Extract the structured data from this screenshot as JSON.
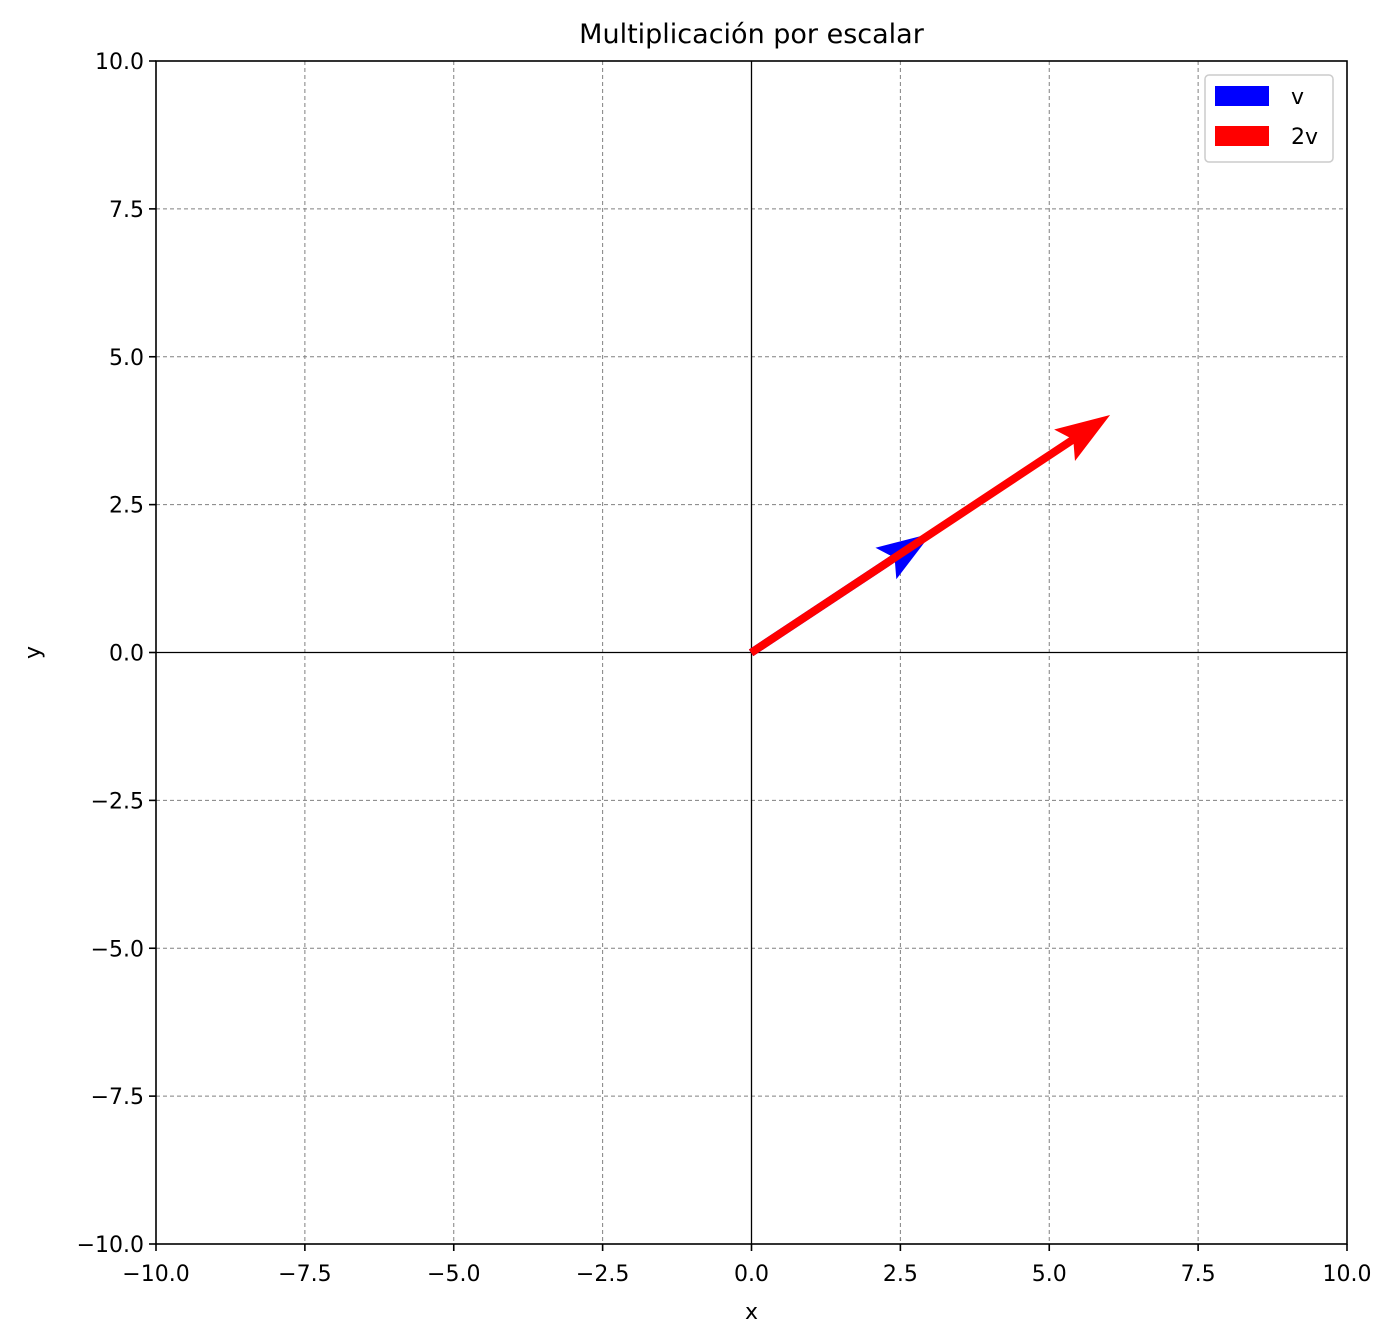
{
  "chart_data": {
    "type": "vector",
    "title": "Multiplicación por escalar",
    "xlabel": "x",
    "ylabel": "y",
    "xlim": [
      -10,
      10
    ],
    "ylim": [
      -10,
      10
    ],
    "xticks": [
      -10,
      -7.5,
      -5,
      -2.5,
      0,
      2.5,
      5,
      7.5,
      10
    ],
    "yticks": [
      -10,
      -7.5,
      -5,
      -2.5,
      0,
      2.5,
      5,
      7.5,
      10
    ],
    "xtick_labels": [
      "−10.0",
      "−7.5",
      "−5.0",
      "−2.5",
      "0.0",
      "2.5",
      "5.0",
      "7.5",
      "10.0"
    ],
    "ytick_labels": [
      "−10.0",
      "−7.5",
      "−5.0",
      "−2.5",
      "0.0",
      "2.5",
      "5.0",
      "7.5",
      "10.0"
    ],
    "grid": true,
    "grid_style": "dashed",
    "axes_through_origin": true,
    "legend_position": "top-right",
    "series": [
      {
        "name": "v",
        "origin": [
          0,
          0
        ],
        "vector": [
          3,
          2
        ],
        "color": "#0000ff"
      },
      {
        "name": "2v",
        "origin": [
          0,
          0
        ],
        "vector": [
          6,
          4
        ],
        "color": "#ff0000"
      }
    ]
  }
}
